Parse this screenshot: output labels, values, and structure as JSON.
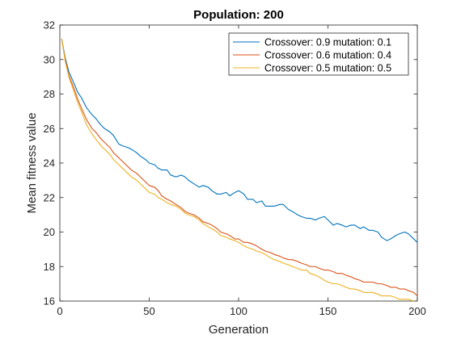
{
  "chart_data": {
    "type": "line",
    "title": "Population: 200",
    "xlabel": "Generation",
    "ylabel": "Mean fitness value",
    "xlim": [
      0,
      200
    ],
    "ylim": [
      16,
      32
    ],
    "xticks": [
      0,
      50,
      100,
      150,
      200
    ],
    "yticks": [
      16,
      18,
      20,
      22,
      24,
      26,
      28,
      30,
      32
    ],
    "grid": false,
    "legend_position": "top-right",
    "series": [
      {
        "name": "Crossover: 0.9 mutation: 0.1",
        "color": "#0072BD",
        "x": [
          1,
          3,
          5,
          8,
          10,
          12,
          15,
          18,
          20,
          23,
          25,
          28,
          30,
          33,
          35,
          38,
          40,
          43,
          45,
          48,
          50,
          53,
          55,
          57,
          60,
          62,
          65,
          68,
          70,
          72,
          75,
          78,
          80,
          83,
          85,
          88,
          90,
          93,
          95,
          98,
          100,
          103,
          105,
          108,
          110,
          113,
          115,
          118,
          120,
          123,
          125,
          128,
          130,
          133,
          135,
          138,
          140,
          143,
          145,
          148,
          150,
          153,
          155,
          158,
          160,
          163,
          165,
          168,
          170,
          173,
          175,
          178,
          180,
          183,
          185,
          188,
          190,
          193,
          195,
          198,
          200
        ],
        "y": [
          31.2,
          30.1,
          29.3,
          28.6,
          28.1,
          27.8,
          27.2,
          26.8,
          26.6,
          26.2,
          26.0,
          25.8,
          25.6,
          25.1,
          25.0,
          24.9,
          24.8,
          24.6,
          24.4,
          24.2,
          24.0,
          23.9,
          23.7,
          23.6,
          23.6,
          23.3,
          23.2,
          23.3,
          23.2,
          23.0,
          22.8,
          22.6,
          22.7,
          22.6,
          22.4,
          22.2,
          22.2,
          22.3,
          22.1,
          22.3,
          22.4,
          22.2,
          21.9,
          21.9,
          21.7,
          21.8,
          21.5,
          21.5,
          21.5,
          21.6,
          21.6,
          21.3,
          21.2,
          21.0,
          20.9,
          20.8,
          20.8,
          20.7,
          20.8,
          20.9,
          20.7,
          20.4,
          20.5,
          20.4,
          20.3,
          20.4,
          20.4,
          20.2,
          20.3,
          20.1,
          20.1,
          20.0,
          19.7,
          19.5,
          19.6,
          19.8,
          19.9,
          20.0,
          19.9,
          19.6,
          19.4
        ]
      },
      {
        "name": "Crossover: 0.6 mutation: 0.4",
        "color": "#D95319",
        "x": [
          1,
          3,
          5,
          8,
          10,
          12,
          15,
          18,
          20,
          23,
          25,
          28,
          30,
          33,
          35,
          38,
          40,
          43,
          45,
          48,
          50,
          53,
          55,
          57,
          60,
          62,
          65,
          68,
          70,
          72,
          75,
          78,
          80,
          83,
          85,
          88,
          90,
          93,
          95,
          98,
          100,
          103,
          105,
          108,
          110,
          113,
          115,
          118,
          120,
          123,
          125,
          128,
          130,
          133,
          135,
          138,
          140,
          143,
          145,
          148,
          150,
          153,
          155,
          158,
          160,
          163,
          165,
          168,
          170,
          173,
          175,
          178,
          180,
          183,
          185,
          188,
          190,
          193,
          195,
          198,
          200
        ],
        "y": [
          31.2,
          30.0,
          29.1,
          28.3,
          27.7,
          27.2,
          26.5,
          26.0,
          25.8,
          25.4,
          25.2,
          24.9,
          24.6,
          24.3,
          24.1,
          23.8,
          23.6,
          23.4,
          23.2,
          22.9,
          22.7,
          22.6,
          22.4,
          22.1,
          21.9,
          21.8,
          21.6,
          21.4,
          21.2,
          21.1,
          21.0,
          20.8,
          20.6,
          20.5,
          20.4,
          20.2,
          20.0,
          19.9,
          19.8,
          19.6,
          19.6,
          19.4,
          19.4,
          19.3,
          19.2,
          19.0,
          18.9,
          18.8,
          18.7,
          18.6,
          18.5,
          18.4,
          18.4,
          18.3,
          18.2,
          18.1,
          18.0,
          18.0,
          17.9,
          17.8,
          17.8,
          17.7,
          17.6,
          17.6,
          17.5,
          17.4,
          17.3,
          17.2,
          17.1,
          17.1,
          17.1,
          17.0,
          17.0,
          16.9,
          16.8,
          16.8,
          16.7,
          16.7,
          16.6,
          16.5,
          16.3
        ]
      },
      {
        "name": "Crossover: 0.5 mutation: 0.5",
        "color": "#EDB120",
        "x": [
          1,
          3,
          5,
          8,
          10,
          12,
          15,
          18,
          20,
          23,
          25,
          28,
          30,
          33,
          35,
          38,
          40,
          43,
          45,
          48,
          50,
          53,
          55,
          57,
          60,
          62,
          65,
          68,
          70,
          72,
          75,
          78,
          80,
          83,
          85,
          88,
          90,
          93,
          95,
          98,
          100,
          103,
          105,
          108,
          110,
          113,
          115,
          118,
          120,
          123,
          125,
          128,
          130,
          133,
          135,
          138,
          140,
          143,
          145,
          148,
          150,
          153,
          155,
          158,
          160,
          163,
          165,
          168,
          170,
          173,
          175,
          178,
          180,
          183,
          185,
          188,
          190,
          193,
          195,
          198,
          200
        ],
        "y": [
          31.2,
          29.9,
          29.0,
          28.1,
          27.5,
          27.0,
          26.2,
          25.7,
          25.4,
          25.0,
          24.8,
          24.5,
          24.2,
          23.9,
          23.7,
          23.4,
          23.2,
          23.0,
          22.8,
          22.5,
          22.3,
          22.2,
          22.0,
          21.9,
          21.7,
          21.6,
          21.5,
          21.3,
          21.1,
          21.0,
          20.9,
          20.7,
          20.5,
          20.3,
          20.2,
          20.0,
          19.8,
          19.7,
          19.6,
          19.5,
          19.4,
          19.2,
          19.1,
          19.0,
          18.9,
          18.8,
          18.7,
          18.5,
          18.4,
          18.3,
          18.2,
          18.1,
          18.0,
          17.9,
          17.8,
          17.8,
          17.6,
          17.5,
          17.4,
          17.2,
          17.1,
          17.0,
          17.0,
          16.9,
          16.8,
          16.7,
          16.7,
          16.6,
          16.5,
          16.5,
          16.5,
          16.4,
          16.3,
          16.3,
          16.3,
          16.2,
          16.1,
          16.1,
          16.1,
          16.0,
          16.0
        ]
      }
    ]
  }
}
